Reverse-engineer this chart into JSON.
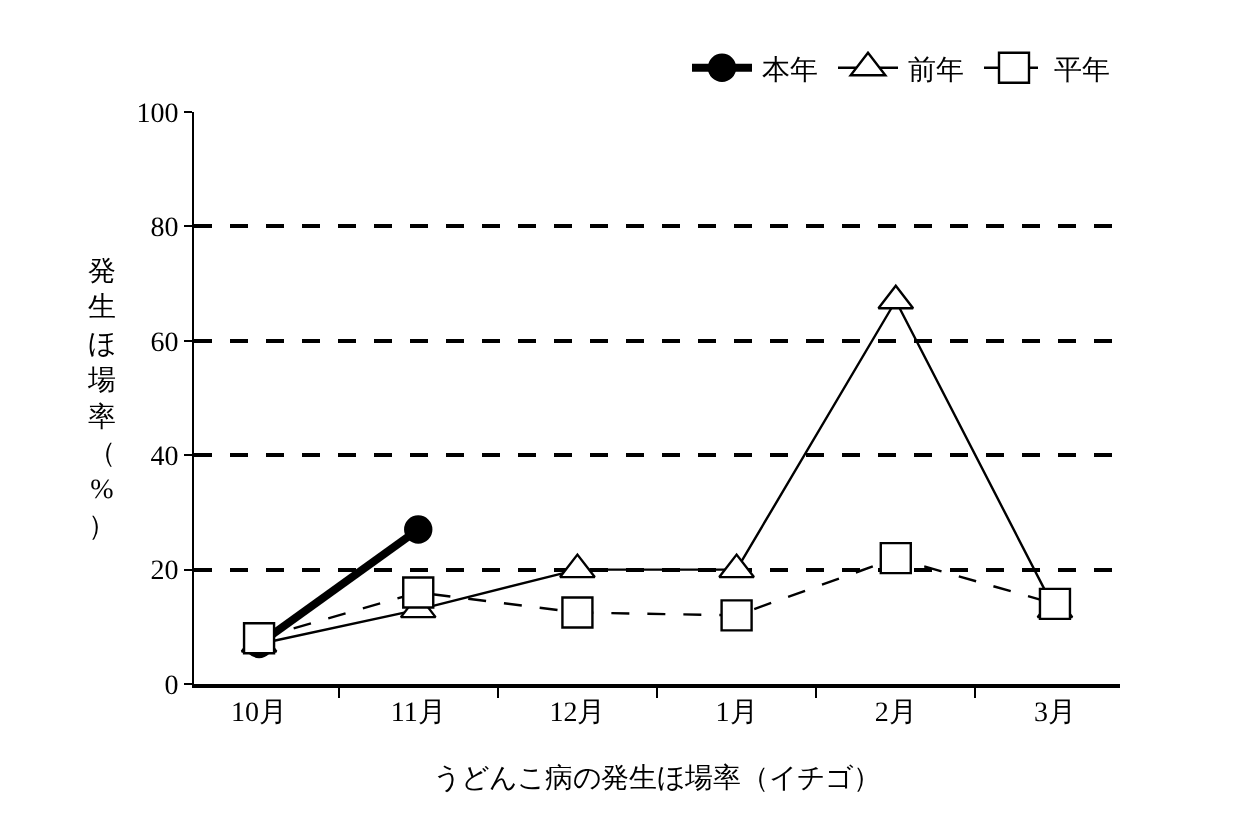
{
  "chart_data": {
    "type": "line",
    "xlabel": "うどんこ病の発生ほ場率（イチゴ）",
    "ylabel": "発生ほ場率（%）",
    "categories": [
      "10月",
      "11月",
      "12月",
      "1月",
      "2月",
      "3月"
    ],
    "series": [
      {
        "name": "本年",
        "color": "#000000",
        "marker": "circle",
        "line_style": "solid",
        "values": [
          7,
          27,
          null,
          null,
          null,
          null
        ]
      },
      {
        "name": "前年",
        "color": "#000000",
        "marker": "triangle",
        "line_style": "solid",
        "values": [
          7,
          13,
          20,
          20,
          67,
          13
        ]
      },
      {
        "name": "平年",
        "color": "#000000",
        "marker": "square",
        "line_style": "dashed",
        "values": [
          8,
          16,
          12.5,
          12,
          22,
          14
        ]
      }
    ],
    "ylim": [
      0,
      100
    ],
    "yticks": [
      0,
      20,
      40,
      60,
      80,
      100
    ],
    "grid": "y",
    "legend": "top right"
  }
}
